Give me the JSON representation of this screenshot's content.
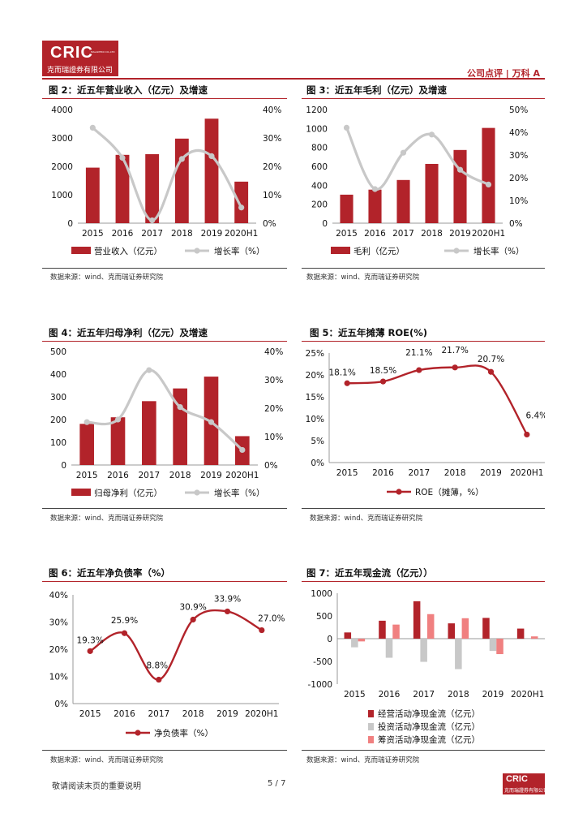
{
  "header": {
    "logo_text": "CRIC",
    "logo_tiny": "MALANTRO CO.,LTD",
    "logo_subtext": "克而瑞證券有限公司",
    "right_text": "公司点评 | 万科 A"
  },
  "colors": {
    "red": "#b2232a",
    "gray": "#c8c8c8",
    "pink": "#f08080"
  },
  "footer": {
    "note": "敬请阅读末页的重要说明",
    "page": "5 / 7",
    "logo_text": "CRIC",
    "logo_subtext": "克而瑞證券有限公司"
  },
  "figures": [
    {
      "id": "fig2",
      "title": "图 2：近五年营业收入（亿元）及增速",
      "source": "数据来源：wind、克而瑞证券研究院",
      "legend": [
        "营业收入（亿元）",
        "增长率（%）"
      ]
    },
    {
      "id": "fig3",
      "title": "图 3：近五年毛利（亿元）及增速",
      "source": "数据来源：wind、克而瑞证券研究院",
      "legend": [
        "毛利（亿元）",
        "增长率（%）"
      ]
    },
    {
      "id": "fig4",
      "title": "图 4：近五年归母净利（亿元）及增速",
      "source": "数据来源：wind、克而瑞证券研究院",
      "legend": [
        "归母净利（亿元）",
        "增长率（%）"
      ]
    },
    {
      "id": "fig5",
      "title": "图 5：近五年摊薄 ROE(%)",
      "source": "数据来源：wind、克而瑞证券研究院",
      "legend": [
        "ROE（摊薄，%）"
      ]
    },
    {
      "id": "fig6",
      "title": "图 6：近五年净负债率（%）",
      "source": "数据来源：wind、克而瑞证券研究院",
      "legend": [
        "净负债率（%）"
      ]
    },
    {
      "id": "fig7",
      "title": "图 7：近五年现金流（亿元））",
      "source": "数据来源：wind、克而瑞证券研究院",
      "legend": [
        "经营活动净现金流（亿元）",
        "投资活动净现金流（亿元）",
        "筹资活动净现金流（亿元）"
      ]
    }
  ],
  "chart_data": [
    {
      "id": "fig2",
      "type": "bar+line",
      "categories": [
        "2015",
        "2016",
        "2017",
        "2018",
        "2019",
        "2020H1"
      ],
      "series": [
        {
          "name": "营业收入（亿元）",
          "kind": "bar",
          "axis": "left",
          "values": [
            1955,
            2405,
            2429,
            2977,
            3679,
            1462
          ]
        },
        {
          "name": "增长率（%）",
          "kind": "line",
          "axis": "right",
          "values": [
            33.6,
            23.0,
            1.0,
            22.6,
            23.6,
            5.5
          ]
        }
      ],
      "ylim": [
        0,
        4000
      ],
      "yticks": [
        "0",
        "1000",
        "2000",
        "3000",
        "4000"
      ],
      "y2lim": [
        0,
        40
      ],
      "y2ticks": [
        "0%",
        "10%",
        "20%",
        "30%",
        "40%"
      ]
    },
    {
      "id": "fig3",
      "type": "bar+line",
      "categories": [
        "2015",
        "2016",
        "2017",
        "2018",
        "2019",
        "2020H1"
      ],
      "series": [
        {
          "name": "毛利（亿元）",
          "kind": "bar",
          "axis": "left",
          "values": [
            301,
            354,
            456,
            626,
            773,
            1006
          ]
        },
        {
          "name": "增长率（%）",
          "kind": "line",
          "axis": "right",
          "values": [
            42,
            15,
            31,
            39,
            23.5,
            17
          ]
        }
      ],
      "ylim": [
        0,
        1200
      ],
      "yticks": [
        "0",
        "200",
        "400",
        "600",
        "800",
        "1000",
        "1200"
      ],
      "y2lim": [
        0,
        50
      ],
      "y2ticks": [
        "0%",
        "10%",
        "20%",
        "30%",
        "40%",
        "50%"
      ]
    },
    {
      "id": "fig4",
      "type": "bar+line",
      "categories": [
        "2015",
        "2016",
        "2017",
        "2018",
        "2019",
        "2020H1"
      ],
      "series": [
        {
          "name": "归母净利（亿元）",
          "kind": "bar",
          "axis": "left",
          "values": [
            181,
            210,
            281,
            337,
            389,
            127
          ]
        },
        {
          "name": "增长率（%）",
          "kind": "line",
          "axis": "right",
          "values": [
            15.1,
            16.0,
            33.4,
            20.4,
            15.1,
            5.3
          ]
        }
      ],
      "ylim": [
        0,
        500
      ],
      "yticks": [
        "0",
        "100",
        "200",
        "300",
        "400",
        "500"
      ],
      "y2lim": [
        0,
        40
      ],
      "y2ticks": [
        "0%",
        "10%",
        "20%",
        "30%",
        "40%"
      ]
    },
    {
      "id": "fig5",
      "type": "line",
      "categories": [
        "2015",
        "2016",
        "2017",
        "2018",
        "2019",
        "2020H1"
      ],
      "series": [
        {
          "name": "ROE（摊薄，%）",
          "values": [
            18.1,
            18.5,
            21.1,
            21.7,
            20.7,
            6.4
          ],
          "labels": [
            "18.1%",
            "18.5%",
            "21.1%",
            "21.7%",
            "20.7%",
            "6.4%"
          ]
        }
      ],
      "ylim": [
        0,
        25
      ],
      "yticks": [
        "0%",
        "5%",
        "10%",
        "15%",
        "20%",
        "25%"
      ]
    },
    {
      "id": "fig6",
      "type": "line",
      "categories": [
        "2015",
        "2016",
        "2017",
        "2018",
        "2019",
        "2020H1"
      ],
      "series": [
        {
          "name": "净负债率（%）",
          "values": [
            19.3,
            25.9,
            8.8,
            30.9,
            33.9,
            27.0
          ],
          "labels": [
            "19.3%",
            "25.9%",
            "8.8%",
            "30.9%",
            "33.9%",
            "27.0%"
          ]
        }
      ],
      "ylim": [
        0,
        40
      ],
      "yticks": [
        "0%",
        "10%",
        "20%",
        "30%",
        "40%"
      ]
    },
    {
      "id": "fig7",
      "type": "bar",
      "categories": [
        "2015",
        "2016",
        "2017",
        "2018",
        "2019",
        "2020H1"
      ],
      "series": [
        {
          "name": "经营活动净现金流（亿元）",
          "values": [
            137,
            395,
            824,
            337,
            457,
            222
          ]
        },
        {
          "name": "投资活动净现金流（亿元）",
          "values": [
            -190,
            -420,
            -510,
            -670,
            -270,
            -10
          ]
        },
        {
          "name": "筹资活动净现金流（亿元）",
          "values": [
            -60,
            310,
            540,
            450,
            -340,
            50
          ]
        }
      ],
      "ylim": [
        -1000,
        1000
      ],
      "yticks": [
        "-1000",
        "-500",
        "0",
        "500",
        "1000"
      ]
    }
  ]
}
